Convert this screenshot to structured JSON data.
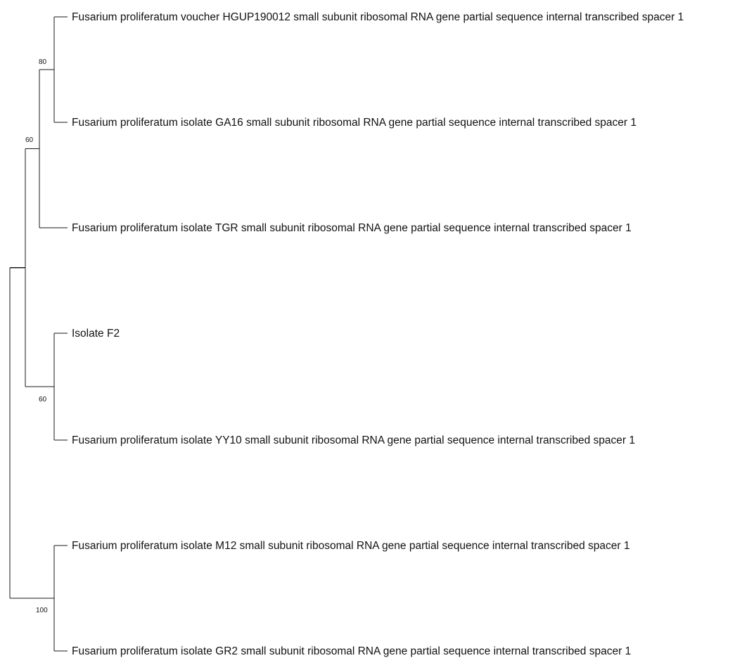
{
  "tree": {
    "taxa": [
      "Fusarium proliferatum voucher HGUP190012 small subunit ribosomal RNA gene partial sequence internal transcribed spacer 1",
      "Fusarium proliferatum isolate GA16 small subunit ribosomal RNA gene partial sequence internal transcribed spacer 1",
      "Fusarium proliferatum isolate TGR small subunit ribosomal RNA gene partial sequence internal transcribed spacer 1",
      "Isolate F2",
      "Fusarium proliferatum isolate YY10 small subunit ribosomal RNA gene partial sequence internal transcribed spacer 1",
      "Fusarium proliferatum isolate M12 small subunit ribosomal RNA gene partial sequence internal transcribed spacer 1",
      "Fusarium proliferatum isolate GR2 small subunit ribosomal RNA gene partial sequence internal transcribed spacer 1"
    ],
    "clades": [
      {
        "members": [
          0,
          1
        ],
        "support": "80"
      },
      {
        "members": [
          0,
          1,
          2
        ],
        "support": "60"
      },
      {
        "members": [
          3,
          4
        ],
        "support": "60"
      },
      {
        "members": [
          0,
          1,
          2,
          3,
          4
        ],
        "support": ""
      },
      {
        "members": [
          5,
          6
        ],
        "support": "100"
      },
      {
        "members": [
          0,
          1,
          2,
          3,
          4,
          5,
          6
        ],
        "support": ""
      }
    ]
  }
}
